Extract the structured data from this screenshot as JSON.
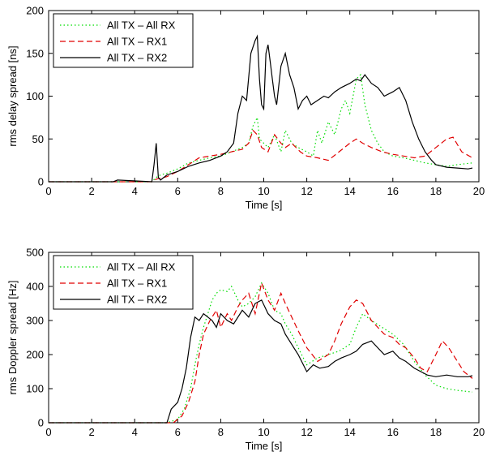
{
  "chart_data": [
    {
      "type": "line",
      "title": "",
      "xlabel": "Time [s]",
      "ylabel": "rms delay spread [ns]",
      "xlim": [
        0,
        20
      ],
      "ylim": [
        0,
        200
      ],
      "xticks": [
        "0",
        "2",
        "4",
        "6",
        "8",
        "10",
        "12",
        "14",
        "16",
        "18",
        "20"
      ],
      "yticks": [
        "0",
        "50",
        "100",
        "150",
        "200"
      ],
      "legend_position": "top-left",
      "grid": false,
      "series": [
        {
          "name": "All TX – All RX",
          "color": "#00dd00",
          "style": "dotted",
          "x": [
            0,
            3,
            4.8,
            5.0,
            5.2,
            5.5,
            6.0,
            6.5,
            7.0,
            7.5,
            8.0,
            8.5,
            9.0,
            9.3,
            9.5,
            9.7,
            9.8,
            10.0,
            10.2,
            10.5,
            10.8,
            11.0,
            11.3,
            11.6,
            12.0,
            12.3,
            12.5,
            12.7,
            13.0,
            13.3,
            13.6,
            13.8,
            14.0,
            14.3,
            14.5,
            14.7,
            15.0,
            15.3,
            15.6,
            16.0,
            16.5,
            17.0,
            17.5,
            18.0,
            18.5,
            19.0,
            19.7
          ],
          "y": [
            0,
            0,
            0,
            5,
            8,
            10,
            15,
            22,
            25,
            28,
            30,
            35,
            40,
            45,
            65,
            75,
            50,
            45,
            40,
            55,
            35,
            60,
            45,
            40,
            35,
            30,
            60,
            45,
            70,
            55,
            85,
            95,
            80,
            120,
            125,
            90,
            60,
            45,
            35,
            30,
            28,
            25,
            22,
            20,
            18,
            20,
            22
          ]
        },
        {
          "name": "All TX – RX1",
          "color": "#e00000",
          "style": "dashed",
          "x": [
            0,
            3,
            4.8,
            5.0,
            5.5,
            6.0,
            6.5,
            7.0,
            7.5,
            8.0,
            8.5,
            9.0,
            9.3,
            9.5,
            9.7,
            9.9,
            10.2,
            10.5,
            10.8,
            11.0,
            11.3,
            11.7,
            12.0,
            12.5,
            13.0,
            13.5,
            14.0,
            14.3,
            14.6,
            15.0,
            15.5,
            16.0,
            16.5,
            17.0,
            17.5,
            18.0,
            18.5,
            18.8,
            19.2,
            19.7
          ],
          "y": [
            0,
            0,
            0,
            3,
            6,
            12,
            20,
            28,
            30,
            32,
            35,
            38,
            45,
            60,
            55,
            40,
            35,
            55,
            45,
            40,
            45,
            35,
            30,
            28,
            25,
            35,
            45,
            50,
            45,
            40,
            35,
            32,
            30,
            28,
            30,
            40,
            50,
            52,
            35,
            28
          ]
        },
        {
          "name": "All TX – RX2",
          "color": "#000000",
          "style": "solid",
          "x": [
            0,
            3,
            3.2,
            4.8,
            4.9,
            5.0,
            5.1,
            5.2,
            5.5,
            6.0,
            6.5,
            7.0,
            7.5,
            8.0,
            8.3,
            8.6,
            8.8,
            9.0,
            9.2,
            9.4,
            9.6,
            9.7,
            9.8,
            9.9,
            10.0,
            10.1,
            10.2,
            10.3,
            10.4,
            10.5,
            10.6,
            10.8,
            11.0,
            11.2,
            11.4,
            11.6,
            11.8,
            12.0,
            12.2,
            12.5,
            12.8,
            13.0,
            13.3,
            13.6,
            14.0,
            14.3,
            14.5,
            14.7,
            15.0,
            15.3,
            15.6,
            16.0,
            16.3,
            16.6,
            16.9,
            17.2,
            17.5,
            17.8,
            18.0,
            18.5,
            19.0,
            19.5,
            19.7
          ],
          "y": [
            0,
            0,
            2,
            0,
            20,
            45,
            5,
            2,
            8,
            12,
            18,
            22,
            25,
            30,
            35,
            45,
            80,
            100,
            95,
            150,
            165,
            170,
            120,
            90,
            85,
            150,
            160,
            140,
            120,
            100,
            90,
            135,
            150,
            125,
            110,
            85,
            95,
            100,
            90,
            95,
            100,
            98,
            105,
            110,
            115,
            120,
            118,
            125,
            115,
            110,
            100,
            105,
            110,
            95,
            70,
            50,
            35,
            25,
            20,
            17,
            16,
            15,
            16
          ]
        }
      ]
    },
    {
      "type": "line",
      "title": "",
      "xlabel": "Time [s]",
      "ylabel": "rms Doppler spread [Hz]",
      "xlim": [
        0,
        20
      ],
      "ylim": [
        0,
        500
      ],
      "xticks": [
        "0",
        "2",
        "4",
        "6",
        "8",
        "10",
        "12",
        "14",
        "16",
        "18",
        "20"
      ],
      "yticks": [
        "0",
        "100",
        "200",
        "300",
        "400",
        "500"
      ],
      "legend_position": "top-left",
      "grid": false,
      "series": [
        {
          "name": "All TX – All RX",
          "color": "#00dd00",
          "style": "dotted",
          "x": [
            0,
            5.5,
            6.0,
            6.3,
            6.6,
            6.8,
            7.0,
            7.2,
            7.4,
            7.6,
            7.8,
            8.0,
            8.3,
            8.5,
            8.8,
            9.0,
            9.3,
            9.6,
            9.9,
            10.2,
            10.5,
            10.8,
            11.0,
            11.3,
            11.6,
            12.0,
            12.5,
            13.0,
            13.5,
            14.0,
            14.3,
            14.6,
            15.0,
            15.5,
            16.0,
            16.5,
            17.0,
            17.5,
            18.0,
            18.5,
            19.0,
            19.7
          ],
          "y": [
            0,
            0,
            10,
            40,
            100,
            170,
            230,
            280,
            320,
            360,
            380,
            390,
            385,
            400,
            360,
            340,
            350,
            370,
            410,
            380,
            330,
            320,
            290,
            260,
            220,
            170,
            190,
            200,
            210,
            230,
            280,
            320,
            300,
            280,
            260,
            230,
            180,
            140,
            110,
            100,
            95,
            90
          ]
        },
        {
          "name": "All TX – RX1",
          "color": "#e00000",
          "style": "dashed",
          "x": [
            0,
            5.8,
            6.2,
            6.5,
            6.8,
            7.0,
            7.2,
            7.5,
            7.8,
            8.0,
            8.3,
            8.5,
            8.8,
            9.0,
            9.3,
            9.6,
            9.9,
            10.2,
            10.5,
            10.8,
            11.0,
            11.3,
            11.6,
            12.0,
            12.5,
            13.0,
            13.3,
            13.6,
            14.0,
            14.3,
            14.6,
            15.0,
            15.3,
            15.6,
            16.0,
            16.3,
            16.6,
            17.0,
            17.3,
            17.6,
            18.0,
            18.3,
            18.6,
            19.0,
            19.3,
            19.7
          ],
          "y": [
            0,
            0,
            20,
            60,
            120,
            200,
            260,
            300,
            330,
            280,
            320,
            300,
            340,
            360,
            380,
            320,
            410,
            360,
            330,
            380,
            350,
            310,
            270,
            220,
            180,
            200,
            240,
            290,
            340,
            360,
            350,
            300,
            280,
            260,
            250,
            230,
            220,
            190,
            160,
            150,
            200,
            240,
            220,
            180,
            150,
            130
          ]
        },
        {
          "name": "All TX – RX2",
          "color": "#000000",
          "style": "solid",
          "x": [
            0,
            5.5,
            5.7,
            6.0,
            6.2,
            6.4,
            6.6,
            6.8,
            7.0,
            7.2,
            7.4,
            7.6,
            7.8,
            8.0,
            8.3,
            8.6,
            9.0,
            9.3,
            9.6,
            9.9,
            10.2,
            10.5,
            10.8,
            11.0,
            11.3,
            11.6,
            12.0,
            12.3,
            12.6,
            13.0,
            13.3,
            13.6,
            14.0,
            14.3,
            14.6,
            15.0,
            15.3,
            15.6,
            16.0,
            16.3,
            16.6,
            17.0,
            17.3,
            17.6,
            18.0,
            18.5,
            19.0,
            19.5,
            19.7
          ],
          "y": [
            0,
            0,
            40,
            60,
            100,
            160,
            250,
            310,
            300,
            320,
            310,
            300,
            280,
            320,
            300,
            290,
            330,
            310,
            350,
            360,
            320,
            300,
            290,
            260,
            230,
            200,
            150,
            170,
            160,
            165,
            180,
            190,
            200,
            210,
            230,
            240,
            220,
            200,
            210,
            190,
            180,
            160,
            150,
            140,
            135,
            140,
            135,
            135,
            138
          ]
        }
      ]
    }
  ]
}
